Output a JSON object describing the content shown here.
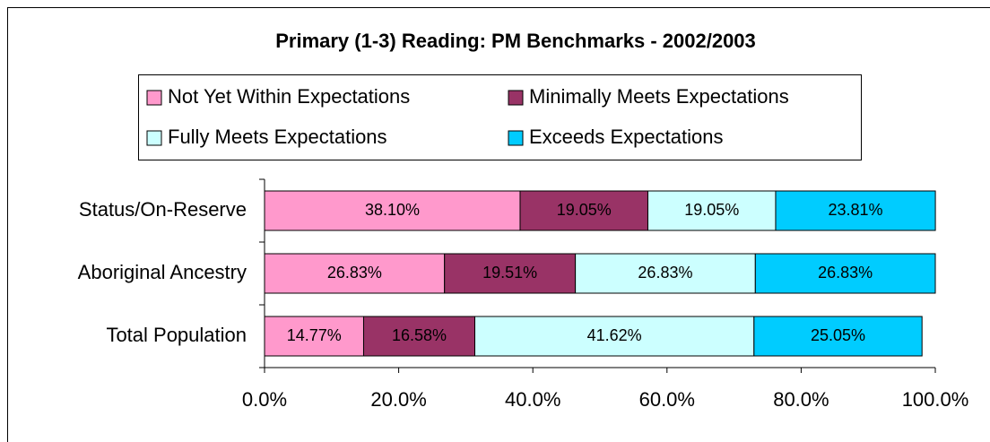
{
  "chart_data": {
    "type": "stacked_bar_horizontal",
    "title": "Primary (1-3) Reading: PM Benchmarks - 2002/2003",
    "categories": [
      "Status/On-Reserve",
      "Aboriginal Ancestry",
      "Total Population"
    ],
    "series": [
      {
        "name": "Not Yet Within Expectations",
        "color": "#ff99cc",
        "values": [
          38.1,
          26.83,
          14.77
        ],
        "value_labels": [
          "38.10%",
          "26.83%",
          "14.77%"
        ]
      },
      {
        "name": "Minimally Meets Expectations",
        "color": "#993366",
        "values": [
          19.05,
          19.51,
          16.58
        ],
        "value_labels": [
          "19.05%",
          "19.51%",
          "16.58%"
        ]
      },
      {
        "name": "Fully Meets Expectations",
        "color": "#ccffff",
        "values": [
          19.05,
          26.83,
          41.62
        ],
        "value_labels": [
          "19.05%",
          "26.83%",
          "41.62%"
        ]
      },
      {
        "name": "Exceeds Expectations",
        "color": "#00ccff",
        "values": [
          23.81,
          26.83,
          25.05
        ],
        "value_labels": [
          "23.81%",
          "26.83%",
          "25.05%"
        ]
      }
    ],
    "xlim": [
      0,
      100
    ],
    "xticks": [
      {
        "value": 0,
        "label": "0.0%"
      },
      {
        "value": 20,
        "label": "20.0%"
      },
      {
        "value": 40,
        "label": "40.0%"
      },
      {
        "value": 60,
        "label": "60.0%"
      },
      {
        "value": 80,
        "label": "80.0%"
      },
      {
        "value": 100,
        "label": "100.0%"
      }
    ],
    "legend": "top"
  }
}
